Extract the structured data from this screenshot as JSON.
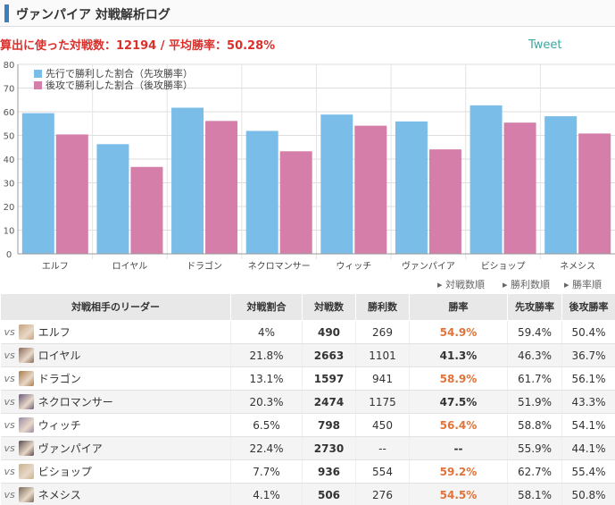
{
  "page": {
    "title": "ヴァンパイア 対戦解析ログ",
    "summary": "算出に使った対戦数：12194 / 平均勝率：50.28%",
    "tweet": "Tweet"
  },
  "colors": {
    "first": "#7bbde9",
    "second": "#d47ea9",
    "accent_bar": "#3d7ebf",
    "summary": "#d9302c",
    "rate_high": "#e0733a"
  },
  "chart_data": {
    "type": "bar",
    "categories": [
      "エルフ",
      "ロイヤル",
      "ドラゴン",
      "ネクロマンサー",
      "ウィッチ",
      "ヴァンパイア",
      "ビショップ",
      "ネメシス"
    ],
    "series": [
      {
        "name": "先行で勝利した割合（先攻勝率）",
        "values": [
          59.4,
          46.3,
          61.7,
          51.9,
          58.8,
          55.9,
          62.7,
          58.1
        ]
      },
      {
        "name": "後攻で勝利した割合（後攻勝率）",
        "values": [
          50.4,
          36.7,
          56.1,
          43.3,
          54.1,
          44.1,
          55.4,
          50.8
        ]
      }
    ],
    "ylim": [
      0,
      80
    ],
    "yticks": [
      "0",
      "10",
      "20",
      "30",
      "40",
      "50",
      "60",
      "70",
      "80"
    ],
    "grid": true,
    "legend": "top-left"
  },
  "sort_links": [
    "対戦数順",
    "勝利数順",
    "勝率順"
  ],
  "table": {
    "headers": [
      "対戦相手のリーダー",
      "対戦割合",
      "対戦数",
      "勝利数",
      "勝率",
      "先攻勝率",
      "後攻勝率"
    ],
    "vs_label": "vs",
    "rows": [
      {
        "name": "エルフ",
        "ratio": "4%",
        "games": "490",
        "wins": "269",
        "rate": "54.9%",
        "first": "59.4%",
        "second": "50.4%",
        "icon": "elf-leader-icon",
        "icon_color": "#c9a27a",
        "high": true
      },
      {
        "name": "ロイヤル",
        "ratio": "21.8%",
        "games": "2663",
        "wins": "1101",
        "rate": "41.3%",
        "first": "46.3%",
        "second": "36.7%",
        "icon": "royal-leader-icon",
        "icon_color": "#8a6a5a",
        "high": false
      },
      {
        "name": "ドラゴン",
        "ratio": "13.1%",
        "games": "1597",
        "wins": "941",
        "rate": "58.9%",
        "first": "61.7%",
        "second": "56.1%",
        "icon": "dragon-leader-icon",
        "icon_color": "#a87a4a",
        "high": true
      },
      {
        "name": "ネクロマンサー",
        "ratio": "20.3%",
        "games": "2474",
        "wins": "1175",
        "rate": "47.5%",
        "first": "51.9%",
        "second": "43.3%",
        "icon": "necromancer-leader-icon",
        "icon_color": "#6a5a7a",
        "high": false
      },
      {
        "name": "ウィッチ",
        "ratio": "6.5%",
        "games": "798",
        "wins": "450",
        "rate": "56.4%",
        "first": "58.8%",
        "second": "54.1%",
        "icon": "witch-leader-icon",
        "icon_color": "#9a8aa8",
        "high": true
      },
      {
        "name": "ヴァンパイア",
        "ratio": "22.4%",
        "games": "2730",
        "wins": "--",
        "rate": "--",
        "first": "55.9%",
        "second": "44.1%",
        "icon": "vampire-leader-icon",
        "icon_color": "#5a4a4a",
        "high": false
      },
      {
        "name": "ビショップ",
        "ratio": "7.7%",
        "games": "936",
        "wins": "554",
        "rate": "59.2%",
        "first": "62.7%",
        "second": "55.4%",
        "icon": "bishop-leader-icon",
        "icon_color": "#c8b08a",
        "high": true
      },
      {
        "name": "ネメシス",
        "ratio": "4.1%",
        "games": "506",
        "wins": "276",
        "rate": "54.5%",
        "first": "58.1%",
        "second": "50.8%",
        "icon": "nemesis-leader-icon",
        "icon_color": "#7a6a5a",
        "high": true
      }
    ]
  }
}
